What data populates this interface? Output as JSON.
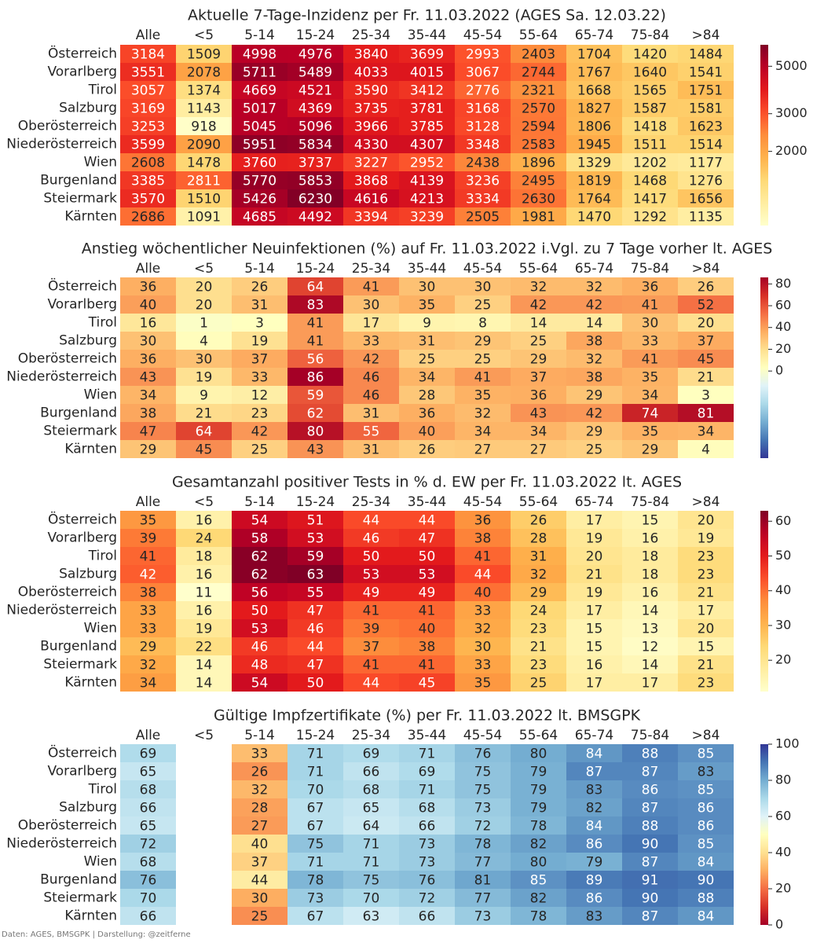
{
  "chart_data": [
    {
      "type": "heatmap",
      "title": "Aktuelle 7-Tage-Inzidenz per Fr. 11.03.2022  (AGES Sa. 12.03.22)",
      "columns": [
        "Alle",
        "<5",
        "5-14",
        "15-24",
        "25-34",
        "35-44",
        "45-54",
        "55-64",
        "65-74",
        "75-84",
        ">84"
      ],
      "rows": [
        "Österreich",
        "Vorarlberg",
        "Tirol",
        "Salzburg",
        "Oberösterreich",
        "Niederösterreich",
        "Wien",
        "Burgenland",
        "Steiermark",
        "Kärnten"
      ],
      "values": [
        [
          3184,
          1509,
          4998,
          4976,
          3840,
          3699,
          2993,
          2403,
          1704,
          1420,
          1484
        ],
        [
          3551,
          2078,
          5711,
          5489,
          4033,
          4015,
          3067,
          2744,
          1767,
          1640,
          1541
        ],
        [
          3057,
          1374,
          4669,
          4521,
          3590,
          3412,
          2776,
          2321,
          1668,
          1565,
          1751
        ],
        [
          3169,
          1143,
          5017,
          4369,
          3735,
          3781,
          3168,
          2570,
          1827,
          1587,
          1581
        ],
        [
          3253,
          918,
          5045,
          5096,
          3966,
          3785,
          3128,
          2594,
          1806,
          1418,
          1623
        ],
        [
          3599,
          2090,
          5951,
          5834,
          4330,
          4307,
          3348,
          2583,
          1945,
          1511,
          1514
        ],
        [
          2608,
          1478,
          3760,
          3737,
          3227,
          2952,
          2438,
          1896,
          1329,
          1202,
          1177
        ],
        [
          3385,
          2811,
          5770,
          5853,
          3868,
          4139,
          3236,
          2495,
          1819,
          1468,
          1276
        ],
        [
          3570,
          1510,
          5426,
          6230,
          4616,
          4213,
          3334,
          2630,
          1764,
          1417,
          1656
        ],
        [
          2686,
          1091,
          4685,
          4492,
          3394,
          3239,
          2505,
          1981,
          1470,
          1292,
          1135
        ]
      ],
      "colormap": "YlOrRd",
      "scale": "log",
      "vmin": 900,
      "vmax": 6300,
      "colorbar_ticks": [
        2000,
        3000,
        5000
      ]
    },
    {
      "type": "heatmap",
      "title": "Anstieg wöchentlicher Neuinfektionen (%) auf Fr. 11.03.2022 i.Vgl. zu 7 Tage vorher lt. AGES",
      "columns": [
        "Alle",
        "<5",
        "5-14",
        "15-24",
        "25-34",
        "35-44",
        "45-54",
        "55-64",
        "65-74",
        "75-84",
        ">84"
      ],
      "rows": [
        "Österreich",
        "Vorarlberg",
        "Tirol",
        "Salzburg",
        "Oberösterreich",
        "Niederösterreich",
        "Wien",
        "Burgenland",
        "Steiermark",
        "Kärnten"
      ],
      "values": [
        [
          36,
          20,
          26,
          64,
          41,
          30,
          30,
          32,
          32,
          36,
          26
        ],
        [
          40,
          20,
          31,
          83,
          30,
          35,
          25,
          42,
          42,
          41,
          52
        ],
        [
          16,
          1,
          3,
          41,
          17,
          9,
          8,
          14,
          14,
          30,
          20
        ],
        [
          30,
          4,
          19,
          41,
          33,
          31,
          29,
          25,
          38,
          33,
          37
        ],
        [
          36,
          30,
          37,
          56,
          42,
          25,
          25,
          29,
          32,
          41,
          45
        ],
        [
          43,
          19,
          33,
          86,
          46,
          34,
          41,
          37,
          38,
          35,
          21
        ],
        [
          34,
          9,
          12,
          59,
          46,
          28,
          35,
          36,
          29,
          34,
          3
        ],
        [
          38,
          21,
          23,
          62,
          31,
          36,
          32,
          43,
          42,
          74,
          81
        ],
        [
          47,
          64,
          42,
          80,
          55,
          40,
          34,
          34,
          29,
          35,
          34
        ],
        [
          29,
          45,
          25,
          43,
          31,
          26,
          27,
          27,
          25,
          29,
          4
        ]
      ],
      "colormap": "RdYlBu_r",
      "vmin": -80,
      "vmax": 86,
      "colorbar_ticks": [
        0,
        20,
        40,
        60,
        80
      ]
    },
    {
      "type": "heatmap",
      "title": "Gesamtanzahl positiver Tests in % d. EW per Fr. 11.03.2022 lt. AGES",
      "columns": [
        "Alle",
        "<5",
        "5-14",
        "15-24",
        "25-34",
        "35-44",
        "45-54",
        "55-64",
        "65-74",
        "75-84",
        ">84"
      ],
      "rows": [
        "Österreich",
        "Vorarlberg",
        "Tirol",
        "Salzburg",
        "Oberösterreich",
        "Niederösterreich",
        "Wien",
        "Burgenland",
        "Steiermark",
        "Kärnten"
      ],
      "values": [
        [
          35,
          16,
          54,
          51,
          44,
          44,
          36,
          26,
          17,
          15,
          20
        ],
        [
          39,
          24,
          58,
          53,
          46,
          47,
          38,
          28,
          19,
          16,
          19
        ],
        [
          41,
          18,
          62,
          59,
          50,
          50,
          41,
          31,
          20,
          18,
          23
        ],
        [
          42,
          16,
          62,
          63,
          53,
          53,
          44,
          32,
          21,
          18,
          23
        ],
        [
          38,
          11,
          56,
          55,
          49,
          49,
          40,
          29,
          19,
          16,
          21
        ],
        [
          33,
          16,
          50,
          47,
          41,
          41,
          33,
          24,
          17,
          14,
          17
        ],
        [
          33,
          19,
          53,
          46,
          39,
          40,
          32,
          23,
          15,
          13,
          20
        ],
        [
          29,
          22,
          46,
          44,
          37,
          38,
          30,
          21,
          15,
          12,
          15
        ],
        [
          32,
          14,
          48,
          47,
          41,
          41,
          33,
          23,
          16,
          14,
          21
        ],
        [
          34,
          14,
          54,
          50,
          44,
          45,
          35,
          25,
          17,
          17,
          23
        ]
      ],
      "colormap": "YlOrRd",
      "vmin": 11,
      "vmax": 63,
      "colorbar_ticks": [
        20,
        30,
        40,
        50,
        60
      ]
    },
    {
      "type": "heatmap",
      "title": "Gültige Impfzertifikate (%) per Fr. 11.03.2022 lt. BMSGPK",
      "columns": [
        "Alle",
        "<5",
        "5-14",
        "15-24",
        "25-34",
        "35-44",
        "45-54",
        "55-64",
        "65-74",
        "75-84",
        ">84"
      ],
      "rows": [
        "Österreich",
        "Vorarlberg",
        "Tirol",
        "Salzburg",
        "Oberösterreich",
        "Niederösterreich",
        "Wien",
        "Burgenland",
        "Steiermark",
        "Kärnten"
      ],
      "values": [
        [
          69,
          null,
          33,
          71,
          69,
          71,
          76,
          80,
          84,
          88,
          85
        ],
        [
          65,
          null,
          26,
          71,
          66,
          69,
          75,
          79,
          87,
          87,
          83
        ],
        [
          68,
          null,
          32,
          70,
          68,
          71,
          75,
          79,
          83,
          86,
          85
        ],
        [
          66,
          null,
          28,
          67,
          65,
          68,
          73,
          79,
          82,
          87,
          86
        ],
        [
          65,
          null,
          27,
          67,
          64,
          66,
          72,
          78,
          84,
          88,
          86
        ],
        [
          72,
          null,
          40,
          75,
          71,
          73,
          78,
          82,
          86,
          90,
          85
        ],
        [
          68,
          null,
          37,
          71,
          71,
          73,
          77,
          80,
          79,
          87,
          84
        ],
        [
          76,
          null,
          44,
          78,
          75,
          76,
          81,
          85,
          89,
          91,
          90
        ],
        [
          70,
          null,
          30,
          73,
          70,
          72,
          77,
          82,
          86,
          90,
          88
        ],
        [
          66,
          null,
          25,
          67,
          63,
          66,
          73,
          78,
          83,
          87,
          84
        ]
      ],
      "colormap": "RdYlBu",
      "vmin": 0,
      "vmax": 100,
      "colorbar_ticks": [
        0,
        20,
        40,
        60,
        80,
        100
      ]
    }
  ],
  "footer": "Daten: AGES, BMSGPK | Darstellung: @zeitferne"
}
